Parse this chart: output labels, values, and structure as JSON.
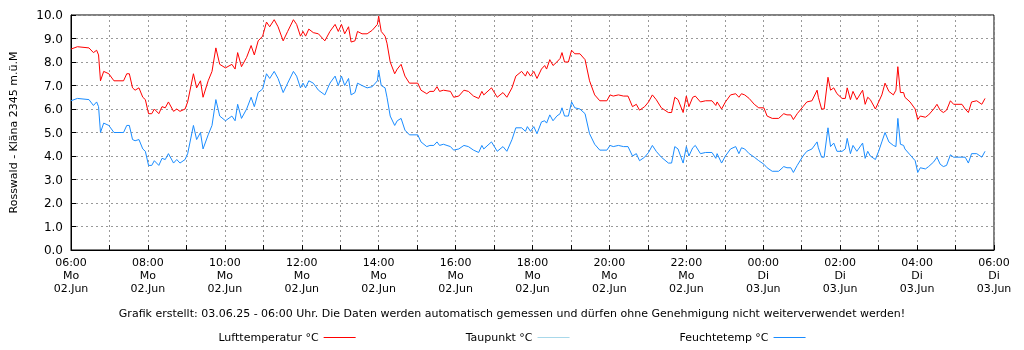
{
  "chart_data": {
    "type": "line",
    "ylabel": "Rosswald - Kläna 2345 m.ü.M",
    "annotations": [
      "Grafik erstellt: 03.06.25 - 06:00 Uhr. Die Daten werden automatisch gemessen und dürfen ohne Genehmigung nicht weiterverwendet werden!"
    ],
    "x": [
      "--06-02T06:00",
      "--06-02T06:10",
      "--06-02T06:28",
      "--06-02T06:35",
      "--06-02T06:40",
      "--06-02T06:43",
      "--06-02T06:46",
      "--06-02T06:51",
      "--06-02T06:59",
      "--06-02T07:07",
      "--06-02T07:22",
      "--06-02T07:27",
      "--06-02T07:31",
      "--06-02T07:36",
      "--06-02T07:40",
      "--06-02T07:46",
      "--06-02T07:52",
      "--06-02T07:56",
      "--06-02T08:01",
      "--06-02T08:06",
      "--06-02T08:10",
      "--06-02T08:17",
      "--06-02T08:22",
      "--06-02T08:27",
      "--06-02T08:32",
      "--06-02T08:40",
      "--06-02T08:45",
      "--06-02T08:50",
      "--06-02T08:58",
      "--06-02T09:02",
      "--06-02T09:11",
      "--06-02T09:16",
      "--06-02T09:22",
      "--06-02T09:26",
      "--06-02T09:34",
      "--06-02T09:40",
      "--06-02T09:46",
      "--06-02T09:52",
      "--06-02T10:01",
      "--06-02T10:11",
      "--06-02T10:16",
      "--06-02T10:20",
      "--06-02T10:26",
      "--06-02T10:34",
      "--06-02T10:41",
      "--06-02T10:46",
      "--06-02T10:52",
      "--06-02T10:59",
      "--06-02T11:05",
      "--06-02T11:10",
      "--06-02T11:17",
      "--06-02T11:23",
      "--06-02T11:31",
      "--06-02T11:38",
      "--06-02T11:47",
      "--06-02T11:52",
      "--06-02T11:58",
      "--06-02T12:02",
      "--06-02T12:06",
      "--06-02T12:11",
      "--06-02T12:18",
      "--06-02T12:26",
      "--06-02T12:36",
      "--06-02T12:44",
      "--06-02T12:52",
      "--06-02T12:57",
      "--06-02T13:02",
      "--06-02T13:07",
      "--06-02T13:13",
      "--06-02T13:17",
      "--06-02T13:23",
      "--06-02T13:27",
      "--06-02T13:34",
      "--06-02T13:42",
      "--06-02T13:50",
      "--06-02T13:58",
      "--06-02T14:00",
      "--06-02T14:04",
      "--06-02T14:10",
      "--06-02T14:13",
      "--06-02T14:18",
      "--06-02T14:25",
      "--06-02T14:29",
      "--06-02T14:35",
      "--06-02T14:41",
      "--06-02T14:48",
      "--06-02T15:01",
      "--06-02T15:06",
      "--06-02T15:15",
      "--06-02T15:20",
      "--06-02T15:26",
      "--06-02T15:31",
      "--06-02T15:35",
      "--06-02T15:41",
      "--06-02T15:52",
      "--06-02T15:57",
      "--06-02T16:05",
      "--06-02T16:13",
      "--06-02T16:20",
      "--06-02T16:28",
      "--06-02T16:36",
      "--06-02T16:41",
      "--06-02T16:44",
      "--06-02T16:56",
      "--06-02T17:05",
      "--06-02T17:14",
      "--06-02T17:20",
      "--06-02T17:28",
      "--06-02T17:34",
      "--06-02T17:43",
      "--06-02T17:49",
      "--06-02T17:52",
      "--06-02T17:57",
      "--06-02T18:02",
      "--06-02T18:07",
      "--06-02T18:14",
      "--06-02T18:19",
      "--06-02T18:22",
      "--06-02T18:27",
      "--06-02T18:32",
      "--06-02T18:38",
      "--06-02T18:43",
      "--06-02T18:46",
      "--06-02T18:50",
      "--06-02T18:56",
      "--06-02T19:01",
      "--06-02T19:06",
      "--06-02T19:14",
      "--06-02T19:22",
      "--06-02T19:29",
      "--06-02T19:37",
      "--06-02T19:45",
      "--06-02T19:56",
      "--06-02T20:01",
      "--06-02T20:06",
      "--06-02T20:14",
      "--06-02T20:22",
      "--06-02T20:29",
      "--06-02T20:36",
      "--06-02T20:42",
      "--06-02T20:47",
      "--06-02T20:55",
      "--06-02T21:01",
      "--06-02T21:07",
      "--06-02T21:13",
      "--06-02T21:21",
      "--06-02T21:32",
      "--06-02T21:37",
      "--06-02T21:42",
      "--06-02T21:47",
      "--06-02T21:55",
      "--06-02T22:00",
      "--06-02T22:04",
      "--06-02T22:10",
      "--06-02T22:14",
      "--06-02T22:22",
      "--06-02T22:30",
      "--06-02T22:40",
      "--06-02T22:46",
      "--06-02T22:48",
      "--06-02T22:55",
      "--06-02T23:01",
      "--06-02T23:09",
      "--06-02T23:17",
      "--06-02T23:22",
      "--06-02T23:26",
      "--06-02T23:31",
      "--06-02T23:38",
      "--06-02T23:46",
      "--06-02T23:53",
      "--06-03T00:01",
      "--06-03T00:06",
      "--06-03T00:14",
      "--06-03T00:24",
      "--06-03T00:32",
      "--06-03T00:37",
      "--06-03T00:43",
      "--06-03T00:47",
      "--06-03T00:53",
      "--06-03T01:02",
      "--06-03T01:08",
      "--06-03T01:16",
      "--06-03T01:24",
      "--06-03T01:26",
      "--06-03T01:31",
      "--06-03T01:35",
      "--06-03T01:41",
      "--06-03T01:45",
      "--06-03T01:50",
      "--06-03T01:55",
      "--06-03T02:03",
      "--06-03T02:08",
      "--06-03T02:11",
      "--06-03T02:16",
      "--06-03T02:20",
      "--06-03T02:26",
      "--06-03T02:35",
      "--06-03T02:39",
      "--06-03T02:43",
      "--06-03T02:47",
      "--06-03T02:55",
      "--06-03T03:00",
      "--06-03T03:05",
      "--06-03T03:10",
      "--06-03T03:16",
      "--06-03T03:23",
      "--06-03T03:27",
      "--06-03T03:30",
      "--06-03T03:34",
      "--06-03T03:39",
      "--06-03T03:41",
      "--06-03T03:49",
      "--06-03T03:57",
      "--06-03T04:01",
      "--06-03T04:05",
      "--06-03T04:13",
      "--06-03T04:18",
      "--06-03T04:26",
      "--06-03T04:31",
      "--06-03T04:36",
      "--06-03T04:41",
      "--06-03T04:46",
      "--06-03T04:52",
      "--06-03T04:57",
      "--06-03T05:10",
      "--06-03T05:15",
      "--06-03T05:20",
      "--06-03T05:25",
      "--06-03T05:33",
      "--06-03T05:41",
      "--06-03T05:46"
    ],
    "series": [
      {
        "name": "Lufttemperatur °C",
        "color": "#ff0000",
        "values": [
          8.55,
          8.65,
          8.6,
          8.4,
          8.5,
          8.3,
          7.2,
          7.6,
          7.5,
          7.2,
          7.2,
          7.5,
          7.5,
          6.9,
          6.8,
          6.9,
          6.5,
          6.4,
          5.8,
          5.8,
          6.0,
          5.8,
          6.1,
          6.05,
          6.3,
          5.9,
          6.0,
          5.9,
          6.0,
          6.3,
          7.5,
          6.9,
          7.2,
          6.5,
          7.2,
          7.6,
          8.6,
          7.9,
          7.75,
          7.9,
          7.7,
          8.4,
          7.8,
          8.2,
          8.7,
          8.3,
          8.9,
          9.1,
          9.7,
          9.5,
          9.8,
          9.5,
          8.9,
          9.3,
          9.8,
          9.6,
          9.1,
          9.3,
          9.1,
          9.4,
          9.25,
          9.2,
          8.9,
          9.3,
          9.6,
          9.3,
          9.6,
          9.2,
          9.5,
          8.85,
          8.9,
          9.3,
          9.2,
          9.2,
          9.35,
          9.6,
          9.95,
          9.3,
          9.1,
          8.8,
          8.0,
          7.5,
          7.7,
          7.9,
          7.4,
          7.1,
          7.1,
          6.8,
          6.65,
          6.75,
          6.75,
          6.95,
          6.75,
          6.8,
          6.75,
          6.5,
          6.55,
          6.8,
          6.75,
          6.55,
          6.45,
          6.75,
          6.6,
          6.9,
          6.5,
          6.7,
          6.5,
          6.9,
          7.4,
          7.6,
          7.4,
          7.6,
          7.4,
          7.6,
          7.3,
          7.7,
          7.85,
          7.7,
          8.1,
          7.85,
          8.0,
          8.15,
          8.4,
          8.0,
          8.0,
          8.5,
          8.35,
          8.35,
          8.1,
          7.2,
          6.6,
          6.35,
          6.35,
          6.6,
          6.55,
          6.6,
          6.55,
          6.55,
          6.1,
          6.2,
          5.95,
          6.1,
          6.3,
          6.6,
          6.4,
          6.05,
          5.85,
          5.85,
          6.5,
          6.4,
          5.85,
          6.55,
          6.1,
          6.5,
          6.55,
          6.3,
          6.35,
          6.35,
          6.15,
          6.3,
          6.0,
          6.3,
          6.6,
          6.65,
          6.5,
          6.65,
          6.6,
          6.45,
          6.2,
          6.05,
          6.05,
          5.7,
          5.6,
          5.6,
          5.8,
          5.75,
          5.75,
          5.55,
          5.8,
          6.1,
          6.3,
          6.35,
          6.8,
          6.5,
          6.0,
          6.0,
          7.35,
          6.8,
          6.9,
          6.65,
          6.45,
          6.45,
          6.9,
          6.4,
          6.75,
          6.4,
          6.8,
          6.2,
          6.5,
          6.4,
          6.0,
          6.3,
          6.6,
          7.1,
          6.75,
          6.6,
          6.8,
          7.8,
          6.7,
          6.7,
          6.5,
          6.3,
          6.0,
          5.55,
          5.7,
          5.65,
          5.75,
          6.0,
          6.2,
          5.95,
          5.85,
          5.95,
          6.35,
          6.2,
          6.2,
          6.0,
          5.85,
          6.3,
          6.35,
          6.2,
          6.45
        ]
      },
      {
        "name": "Taupunkt °C",
        "color": "#a8d8ea",
        "values": [
          null,
          null,
          null,
          null,
          null,
          null,
          null,
          null,
          null,
          null,
          null,
          null,
          null,
          null,
          null,
          null,
          null,
          null,
          null,
          null,
          null,
          null,
          null,
          null,
          null,
          null,
          null,
          null,
          null,
          null,
          null,
          null,
          null,
          null,
          null,
          null,
          null,
          null,
          null,
          null,
          null,
          null,
          null,
          null,
          null,
          null,
          null,
          null,
          null,
          null,
          null,
          null,
          null,
          null,
          null,
          null,
          null,
          null,
          null,
          null,
          null,
          null,
          null,
          null,
          null,
          null,
          null,
          null,
          null,
          null,
          null,
          null,
          null,
          null,
          null,
          null,
          null,
          null,
          null,
          null,
          null,
          null,
          null,
          null,
          null,
          null,
          null,
          null,
          null,
          null,
          null,
          null,
          null,
          null,
          null,
          null,
          null,
          null,
          null,
          null,
          null,
          null,
          null,
          null,
          null,
          null,
          null,
          null,
          null,
          null,
          null,
          null,
          null,
          null,
          null,
          null,
          null,
          null,
          null,
          null,
          null,
          null,
          null,
          null,
          null,
          null,
          null,
          null,
          null,
          null,
          null,
          null,
          null,
          null,
          null,
          null,
          null,
          null,
          null,
          null,
          null,
          null,
          null,
          null,
          null,
          null,
          null,
          null,
          null,
          null,
          null,
          null,
          null,
          null,
          null,
          null,
          null,
          null,
          null,
          null,
          null,
          null,
          null,
          null,
          null,
          null,
          null,
          null,
          null,
          null,
          null,
          null,
          null,
          null,
          null,
          null,
          null,
          null,
          null,
          null,
          null,
          null,
          null,
          null,
          null,
          null,
          null,
          null,
          null,
          null,
          null,
          null,
          null,
          null,
          null,
          null,
          null,
          null,
          null,
          null,
          null,
          null,
          null,
          null,
          null,
          null,
          null,
          null,
          null,
          null,
          null,
          null,
          null,
          null,
          null,
          null,
          null,
          null,
          null,
          null,
          null,
          null,
          null,
          null,
          null,
          null,
          null,
          null,
          null,
          null,
          null
        ]
      },
      {
        "name": "Feuchtetemp °C",
        "color": "#1a8cff",
        "values": [
          6.35,
          6.45,
          6.4,
          6.15,
          6.3,
          6.1,
          5.0,
          5.4,
          5.3,
          5.0,
          5.0,
          5.3,
          5.3,
          4.7,
          4.65,
          4.7,
          4.3,
          4.2,
          3.6,
          3.6,
          3.8,
          3.6,
          3.9,
          3.85,
          4.1,
          3.7,
          3.85,
          3.7,
          3.85,
          4.1,
          5.3,
          4.7,
          5.0,
          4.3,
          4.9,
          5.3,
          6.4,
          5.7,
          5.5,
          5.7,
          5.5,
          6.2,
          5.6,
          6.0,
          6.5,
          6.1,
          6.7,
          6.85,
          7.5,
          7.3,
          7.6,
          7.3,
          6.7,
          7.1,
          7.6,
          7.4,
          6.9,
          7.1,
          6.9,
          7.2,
          7.1,
          6.8,
          6.6,
          7.1,
          7.4,
          7.0,
          7.4,
          7.0,
          7.3,
          6.6,
          6.7,
          7.1,
          7.0,
          6.9,
          6.95,
          7.2,
          7.65,
          7.0,
          6.9,
          6.5,
          5.7,
          5.3,
          5.5,
          5.6,
          5.1,
          4.9,
          4.9,
          4.6,
          4.4,
          4.45,
          4.45,
          4.6,
          4.45,
          4.5,
          4.4,
          4.25,
          4.3,
          4.45,
          4.4,
          4.25,
          4.15,
          4.45,
          4.3,
          4.6,
          4.2,
          4.4,
          4.2,
          4.7,
          5.2,
          5.2,
          5.05,
          5.25,
          5.05,
          5.25,
          4.95,
          5.45,
          5.5,
          5.4,
          5.75,
          5.5,
          5.7,
          5.8,
          6.05,
          5.7,
          5.7,
          6.3,
          6.05,
          6.0,
          5.8,
          4.95,
          4.5,
          4.25,
          4.25,
          4.45,
          4.4,
          4.45,
          4.4,
          4.4,
          4.0,
          4.1,
          3.8,
          3.95,
          4.15,
          4.45,
          4.2,
          3.95,
          3.7,
          3.7,
          4.4,
          4.3,
          3.7,
          4.4,
          4.0,
          4.35,
          4.45,
          4.1,
          4.15,
          4.15,
          3.9,
          4.1,
          3.7,
          4.0,
          4.3,
          4.4,
          4.1,
          4.35,
          4.3,
          4.1,
          3.95,
          3.8,
          3.65,
          3.5,
          3.35,
          3.35,
          3.55,
          3.5,
          3.5,
          3.3,
          3.6,
          4.0,
          4.2,
          4.3,
          4.6,
          4.35,
          3.95,
          3.95,
          5.2,
          4.4,
          4.55,
          4.2,
          4.2,
          4.3,
          4.75,
          4.1,
          4.45,
          4.2,
          4.55,
          3.9,
          4.2,
          4.0,
          3.85,
          4.2,
          4.6,
          5.0,
          4.6,
          4.45,
          4.4,
          5.6,
          4.5,
          4.45,
          4.3,
          4.05,
          3.8,
          3.3,
          3.5,
          3.45,
          3.55,
          3.75,
          3.95,
          3.65,
          3.55,
          3.6,
          4.05,
          3.95,
          3.95,
          3.95,
          3.7,
          4.1,
          4.1,
          3.95,
          4.2
        ]
      }
    ],
    "xlim": [
      "--06-02T06:00",
      "--06-03T06:00"
    ],
    "xticks": [
      {
        "value": "--06-02T06:00",
        "label": "06:00\nMo\n02.Jun"
      },
      {
        "value": "--06-02T07:00",
        "label": null
      },
      {
        "value": "--06-02T08:00",
        "label": "08:00\nMo\n02.Jun"
      },
      {
        "value": "--06-02T09:00",
        "label": null
      },
      {
        "value": "--06-02T10:00",
        "label": "10:00\nMo\n02.Jun"
      },
      {
        "value": "--06-02T11:00",
        "label": null
      },
      {
        "value": "--06-02T12:00",
        "label": "12:00\nMo\n02.Jun"
      },
      {
        "value": "--06-02T13:00",
        "label": null
      },
      {
        "value": "--06-02T14:00",
        "label": "14:00\nMo\n02.Jun"
      },
      {
        "value": "--06-02T15:00",
        "label": null
      },
      {
        "value": "--06-02T16:00",
        "label": "16:00\nMo\n02.Jun"
      },
      {
        "value": "--06-02T17:00",
        "label": null
      },
      {
        "value": "--06-02T18:00",
        "label": "18:00\nMo\n02.Jun"
      },
      {
        "value": "--06-02T19:00",
        "label": null
      },
      {
        "value": "--06-02T20:00",
        "label": "20:00\nMo\n02.Jun"
      },
      {
        "value": "--06-02T21:00",
        "label": null
      },
      {
        "value": "--06-02T22:00",
        "label": "22:00\nMo\n02.Jun"
      },
      {
        "value": "--06-02T23:00",
        "label": null
      },
      {
        "value": "--06-03T00:00",
        "label": "00:00\nDi\n03.Jun"
      },
      {
        "value": "--06-03T01:00",
        "label": null
      },
      {
        "value": "--06-03T02:00",
        "label": "02:00\nDi\n03.Jun"
      },
      {
        "value": "--06-03T03:00",
        "label": null
      },
      {
        "value": "--06-03T04:00",
        "label": "04:00\nDi\n03.Jun"
      },
      {
        "value": "--06-03T05:00",
        "label": null
      },
      {
        "value": "--06-03T06:00",
        "label": "06:00\nDi\n03.Jun"
      }
    ],
    "ylim": [
      0,
      10
    ],
    "yticks": [
      {
        "value": 0,
        "label": "0.0"
      },
      {
        "value": 1,
        "label": "1.0"
      },
      {
        "value": 2,
        "label": "2.0"
      },
      {
        "value": 3,
        "label": "3.0"
      },
      {
        "value": 4,
        "label": "4.0"
      },
      {
        "value": 5,
        "label": "5.0"
      },
      {
        "value": 6,
        "label": "6.0"
      },
      {
        "value": 7,
        "label": "7.0"
      },
      {
        "value": 8,
        "label": "8.0"
      },
      {
        "value": 9,
        "label": "9.0"
      },
      {
        "value": 10,
        "label": "10.0"
      }
    ],
    "grid": true,
    "legend": "bottom",
    "marker": "none",
    "line_style": "solid"
  }
}
